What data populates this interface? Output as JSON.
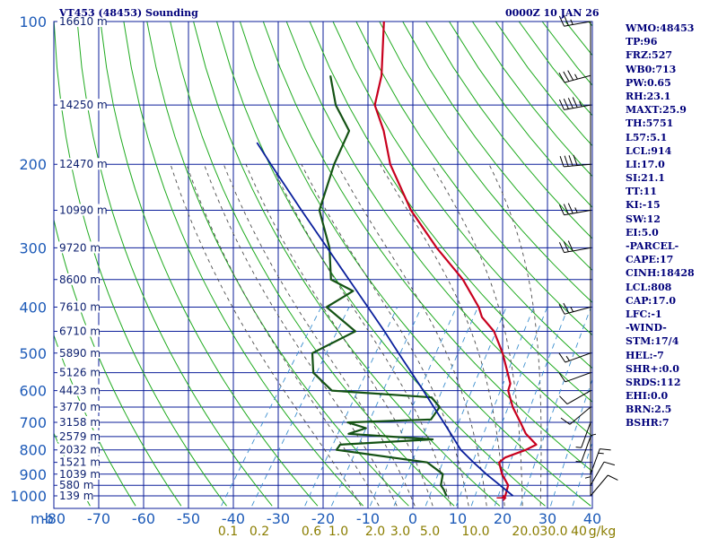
{
  "header": {
    "station_title": "VT453 (48453) Sounding",
    "valid_time": "0000Z 10 JAN 26"
  },
  "colors": {
    "grid": "#0b1e9a",
    "isotherm": "#0b1e9a",
    "dry_adiabat": "#1faa1f",
    "moist_adiabat": "#4b4b4b",
    "mixing_ratio": "#3c8fcf",
    "temperature": "#c8001e",
    "dewpoint": "#145214",
    "parcel": "#0a1f9c",
    "text": "#00007a",
    "axis_labels": "#1e5bb8",
    "mixing_labels": "#8a7d00"
  },
  "chart_data": {
    "type": "line",
    "title": "VT453 (48453) Sounding",
    "subtitle": "0000Z 10 JAN 26",
    "x_axis": {
      "label": "",
      "ticks": [
        -80,
        -70,
        -60,
        -50,
        -40,
        -30,
        -20,
        -10,
        0,
        10,
        20,
        30,
        40
      ],
      "tick_labels": [
        "-80",
        "-70",
        "-60",
        "-50",
        "-40",
        "-30",
        "-20",
        "-10",
        "0",
        "10",
        "20",
        "30",
        "40"
      ],
      "range": [
        -80,
        40
      ],
      "units_label": "mb",
      "skew": "skew-T"
    },
    "y_axis": {
      "label": "",
      "scale": "log",
      "range": [
        100,
        1050
      ],
      "ticks": [
        100,
        200,
        300,
        400,
        500,
        600,
        700,
        800,
        900,
        1000
      ],
      "tick_labels": [
        "100",
        "200",
        "300",
        "400",
        "500",
        "600",
        "700",
        "800",
        "900",
        "1000"
      ]
    },
    "height_labels": [
      {
        "p": 100,
        "label": "16610 m"
      },
      {
        "p": 150,
        "label": "14250 m"
      },
      {
        "p": 200,
        "label": "12470 m"
      },
      {
        "p": 250,
        "label": "10990 m"
      },
      {
        "p": 300,
        "label": "9720 m"
      },
      {
        "p": 350,
        "label": "8600 m"
      },
      {
        "p": 400,
        "label": "7610 m"
      },
      {
        "p": 450,
        "label": "6710 m"
      },
      {
        "p": 500,
        "label": "5890 m"
      },
      {
        "p": 550,
        "label": "5126 m"
      },
      {
        "p": 600,
        "label": "4423 m"
      },
      {
        "p": 650,
        "label": "3770 m"
      },
      {
        "p": 700,
        "label": "3158 m"
      },
      {
        "p": 750,
        "label": "2579 m"
      },
      {
        "p": 800,
        "label": "2032 m"
      },
      {
        "p": 850,
        "label": "1521 m"
      },
      {
        "p": 900,
        "label": "1039 m"
      },
      {
        "p": 950,
        "label": "580 m"
      },
      {
        "p": 1000,
        "label": "139 m"
      }
    ],
    "mixing_ratio_labels": [
      "0.1",
      "0.2",
      "0.6",
      "1.0",
      "2.0",
      "3.0",
      "5.0",
      "10.0",
      "20.0",
      "30.0",
      "40",
      "g/kg"
    ],
    "series": [
      {
        "name": "Temperature",
        "points": [
          {
            "p": 1010,
            "t": 20.2
          },
          {
            "p": 1000,
            "t": 20.6
          },
          {
            "p": 950,
            "t": 19.6
          },
          {
            "p": 900,
            "t": 16.5
          },
          {
            "p": 850,
            "t": 14.0
          },
          {
            "p": 830,
            "t": 14.6
          },
          {
            "p": 800,
            "t": 18.0
          },
          {
            "p": 780,
            "t": 19.5
          },
          {
            "p": 740,
            "t": 15.5
          },
          {
            "p": 700,
            "t": 12.5
          },
          {
            "p": 650,
            "t": 8.4
          },
          {
            "p": 600,
            "t": 4.8
          },
          {
            "p": 580,
            "t": 4.2
          },
          {
            "p": 550,
            "t": 1.9
          },
          {
            "p": 500,
            "t": -2.3
          },
          {
            "p": 450,
            "t": -7.6
          },
          {
            "p": 420,
            "t": -12.5
          },
          {
            "p": 400,
            "t": -14.8
          },
          {
            "p": 350,
            "t": -22.6
          },
          {
            "p": 300,
            "t": -33.4
          },
          {
            "p": 250,
            "t": -45.0
          },
          {
            "p": 200,
            "t": -56.8
          },
          {
            "p": 170,
            "t": -63.5
          },
          {
            "p": 150,
            "t": -69.5
          },
          {
            "p": 130,
            "t": -72.6
          },
          {
            "p": 100,
            "t": -80.5
          }
        ]
      },
      {
        "name": "Dewpoint",
        "points": [
          {
            "p": 1000,
            "t": 7.5
          },
          {
            "p": 970,
            "t": 5.9
          },
          {
            "p": 950,
            "t": 4.6
          },
          {
            "p": 900,
            "t": 3.3
          },
          {
            "p": 850,
            "t": -2.0
          },
          {
            "p": 800,
            "t": -24.2
          },
          {
            "p": 780,
            "t": -24.2
          },
          {
            "p": 760,
            "t": -4.4
          },
          {
            "p": 740,
            "t": -24.0
          },
          {
            "p": 720,
            "t": -21.0
          },
          {
            "p": 700,
            "t": -26.0
          },
          {
            "p": 690,
            "t": -7.9
          },
          {
            "p": 650,
            "t": -7.9
          },
          {
            "p": 620,
            "t": -11.2
          },
          {
            "p": 600,
            "t": -34.5
          },
          {
            "p": 550,
            "t": -41.4
          },
          {
            "p": 500,
            "t": -44.7
          },
          {
            "p": 450,
            "t": -38.5
          },
          {
            "p": 400,
            "t": -48.7
          },
          {
            "p": 370,
            "t": -45.3
          },
          {
            "p": 350,
            "t": -52.0
          },
          {
            "p": 300,
            "t": -57.3
          },
          {
            "p": 250,
            "t": -65.4
          },
          {
            "p": 200,
            "t": -69.3
          },
          {
            "p": 170,
            "t": -71.2
          },
          {
            "p": 150,
            "t": -78.2
          },
          {
            "p": 130,
            "t": -84.0
          }
        ]
      },
      {
        "name": "Parcel",
        "points": [
          {
            "p": 1000,
            "t": 22.3
          },
          {
            "p": 950,
            "t": 17.8
          },
          {
            "p": 900,
            "t": 13.0
          },
          {
            "p": 850,
            "t": 8.3
          },
          {
            "p": 800,
            "t": 3.5
          },
          {
            "p": 750,
            "t": -0.4
          },
          {
            "p": 700,
            "t": -4.6
          },
          {
            "p": 650,
            "t": -9.2
          },
          {
            "p": 600,
            "t": -14.1
          },
          {
            "p": 550,
            "t": -19.5
          },
          {
            "p": 500,
            "t": -25.5
          },
          {
            "p": 450,
            "t": -32.0
          },
          {
            "p": 400,
            "t": -39.5
          },
          {
            "p": 350,
            "t": -48.0
          },
          {
            "p": 300,
            "t": -57.8
          },
          {
            "p": 250,
            "t": -69.4
          },
          {
            "p": 200,
            "t": -83.4
          },
          {
            "p": 180,
            "t": -89.9
          }
        ]
      }
    ],
    "wind_profile": [
      {
        "p": 1000,
        "dir": 40,
        "spd": 10
      },
      {
        "p": 950,
        "dir": 30,
        "spd": 10
      },
      {
        "p": 900,
        "dir": 20,
        "spd": 15
      },
      {
        "p": 850,
        "dir": 360,
        "spd": 5
      },
      {
        "p": 800,
        "dir": 180,
        "spd": 5
      },
      {
        "p": 750,
        "dir": 200,
        "spd": 5
      },
      {
        "p": 700,
        "dir": 200,
        "spd": 5
      },
      {
        "p": 650,
        "dir": 230,
        "spd": 10
      },
      {
        "p": 600,
        "dir": 240,
        "spd": 10
      },
      {
        "p": 550,
        "dir": 250,
        "spd": 10
      },
      {
        "p": 500,
        "dir": 250,
        "spd": 15
      },
      {
        "p": 400,
        "dir": 255,
        "spd": 25
      },
      {
        "p": 300,
        "dir": 260,
        "spd": 30
      },
      {
        "p": 250,
        "dir": 260,
        "spd": 35
      },
      {
        "p": 200,
        "dir": 265,
        "spd": 40
      },
      {
        "p": 150,
        "dir": 260,
        "spd": 45
      },
      {
        "p": 130,
        "dir": 255,
        "spd": 35
      },
      {
        "p": 100,
        "dir": 260,
        "spd": 25
      }
    ]
  },
  "stats": [
    "WMO:48453",
    "TP:96",
    "FRZ:527",
    "WB0:713",
    "PW:0.65",
    "RH:23.1",
    "MAXT:25.9",
    "TH:5751",
    "L57:5.1",
    "LCL:914",
    "LI:17.0",
    "SI:21.1",
    "TT:11",
    "KI:-15",
    "SW:12",
    "EI:5.0",
    "-PARCEL-",
    "CAPE:17",
    "CINH:18428",
    "LCL:808",
    "CAP:17.0",
    "LFC:-1",
    "-WIND-",
    "STM:17/4",
    "HEL:-7",
    "SHR+:0.0",
    "SRDS:112",
    "EHI:0.0",
    "BRN:2.5",
    "BSHR:7"
  ]
}
